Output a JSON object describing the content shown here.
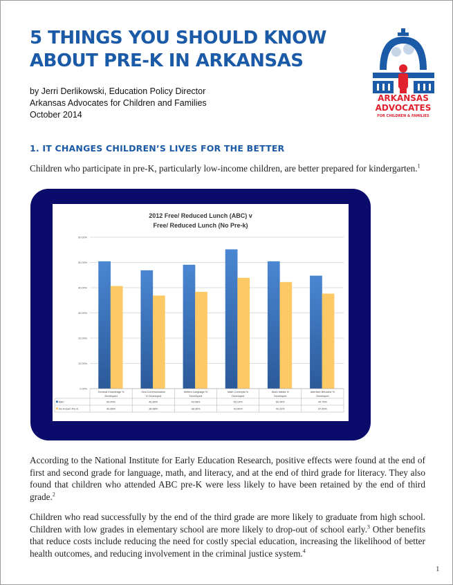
{
  "title_lines": [
    "5 THINGS YOU SHOULD KNOW",
    "ABOUT PRE-K IN ARKANSAS"
  ],
  "byline": [
    "by Jerri Derlikowski, Education Policy Director",
    "Arkansas Advocates for Children and Families",
    "October 2014"
  ],
  "logo": {
    "text": [
      "ARKANSAS",
      "ADVOCATES",
      "FOR CHILDREN & FAMILIES"
    ],
    "colors": {
      "blue": "#1b5aa6",
      "red": "#e0212e"
    }
  },
  "section1": {
    "heading": "1. IT CHANGES CHILDREN’S LIVES FOR THE BETTER",
    "intro": "Children who participate in pre-K, particularly low-income children, are better prepared for kindergarten.",
    "intro_note": "1",
    "para1": "According to the National Institute for Early Education Research, positive effects were found at the end of first and second grade for language, math, and literacy, and at the end of third grade for literacy. They also found that children who attended ABC pre-K were less likely to have been retained by the end of third grade.",
    "para1_note": "2",
    "para2a": "Children who read successfully by the end of the third grade are more likely to graduate from high school. Children with low grades in elementary school are more likely to drop-out of school early.",
    "para2a_note": "3",
    "para2b": " Other benefits that reduce costs include reducing the need for costly special education, increasing the likelihood of better health outcomes, and reducing involvement in the criminal justice system.",
    "para2b_note": "4"
  },
  "page_number": "1",
  "chart_data": {
    "type": "bar",
    "title": [
      "2012 Free/ Reduced Lunch (ABC) v",
      "Free/ Reduced Lunch (No Pre-k)"
    ],
    "categories": [
      [
        "General Knowledge %",
        "Developed"
      ],
      [
        "Oral Communication",
        "% Developed"
      ],
      [
        "Written Language %",
        "Developed"
      ],
      [
        "Math Concepts %",
        "Developed"
      ],
      [
        "Work Habits %",
        "Developed"
      ],
      [
        "Attentive Behavior %",
        "Developed"
      ]
    ],
    "series": [
      {
        "name": "ABC",
        "color": "#3a74c4",
        "values": [
          50.44,
          46.89,
          49.08,
          55.19,
          50.44,
          44.75
        ],
        "labels": [
          "50.44%",
          "46.89%",
          "49.08%",
          "55.19%",
          "50.44%",
          "44.75%"
        ]
      },
      {
        "name": "No Known Pre-K",
        "color": "#fdc965",
        "values": [
          40.66,
          36.88,
          38.35,
          43.9,
          42.23,
          37.65
        ],
        "labels": [
          "40.66%",
          "36.88%",
          "38.35%",
          "43.90%",
          "42.23%",
          "37.65%"
        ]
      }
    ],
    "yticks": [
      "0.00%",
      "10.00%",
      "20.00%",
      "30.00%",
      "40.00%",
      "50.00%",
      "60.00%"
    ],
    "ylim": [
      0,
      60
    ],
    "grid": true,
    "legend": "data-table-bottom",
    "frame_color": "#0b0b6c"
  }
}
